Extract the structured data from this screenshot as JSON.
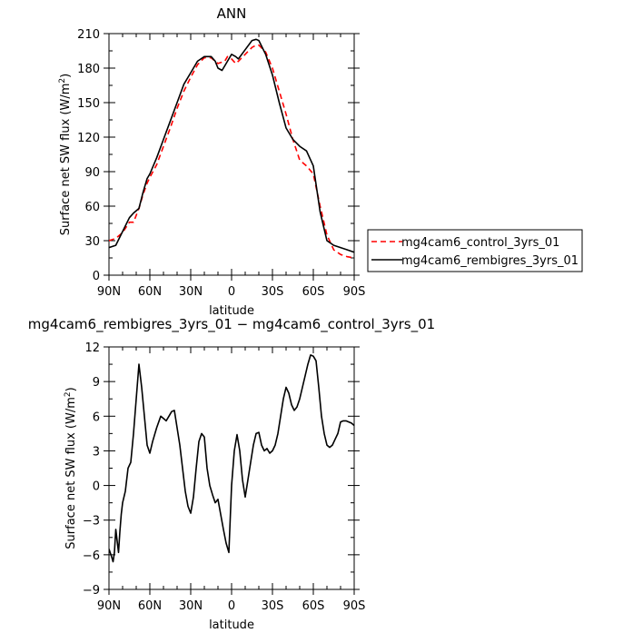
{
  "chart_data": [
    {
      "type": "line",
      "title": "ANN",
      "xlabel": "latitude",
      "ylabel": "Surface net SW flux (W/m²)",
      "ylabel_main": "Surface net SW flux (W/m",
      "ylabel_sup": "2",
      "ylabel_tail": ")",
      "xlim": [
        90,
        -90
      ],
      "ylim": [
        0,
        210
      ],
      "x_ticks": [
        90,
        60,
        30,
        0,
        -30,
        -60,
        -90
      ],
      "x_tick_labels": [
        "90N",
        "60N",
        "30N",
        "0",
        "30S",
        "60S",
        "90S"
      ],
      "y_ticks": [
        0,
        30,
        60,
        90,
        120,
        150,
        180,
        210
      ],
      "y_tick_labels": [
        "0",
        "30",
        "60",
        "90",
        "120",
        "150",
        "180",
        "210"
      ],
      "legend_position": "right",
      "series": [
        {
          "name": "mg4cam6_control_3yrs_01",
          "color": "#ff0000",
          "dash": "dashed",
          "x": [
            90,
            85,
            80,
            75,
            72,
            68,
            65,
            62,
            60,
            55,
            50,
            45,
            40,
            35,
            30,
            25,
            20,
            15,
            12,
            10,
            5,
            3,
            0,
            -3,
            -5,
            -10,
            -15,
            -18,
            -20,
            -25,
            -30,
            -35,
            -40,
            -45,
            -50,
            -55,
            -60,
            -65,
            -70,
            -75,
            -80,
            -85,
            -90
          ],
          "y": [
            30,
            32,
            37,
            46,
            46,
            58,
            70,
            80,
            85,
            96,
            112,
            128,
            145,
            160,
            172,
            183,
            189,
            189,
            186,
            184,
            186,
            190,
            188,
            184,
            186,
            192,
            198,
            200,
            200,
            194,
            180,
            160,
            140,
            118,
            100,
            95,
            88,
            60,
            35,
            22,
            18,
            16,
            15
          ]
        },
        {
          "name": "mg4cam6_rembigres_3yrs_01",
          "color": "#000000",
          "dash": "solid",
          "x": [
            90,
            85,
            80,
            75,
            72,
            68,
            65,
            62,
            60,
            55,
            50,
            45,
            40,
            35,
            30,
            25,
            20,
            15,
            12,
            10,
            7,
            5,
            3,
            0,
            -3,
            -5,
            -10,
            -15,
            -18,
            -20,
            -25,
            -30,
            -35,
            -40,
            -45,
            -50,
            -55,
            -60,
            -65,
            -70,
            -75,
            -80,
            -85,
            -90
          ],
          "y": [
            24,
            26,
            38,
            50,
            54,
            58,
            72,
            84,
            88,
            102,
            118,
            134,
            150,
            166,
            176,
            186,
            190,
            190,
            186,
            180,
            178,
            182,
            186,
            192,
            190,
            188,
            196,
            204,
            205,
            204,
            192,
            174,
            150,
            128,
            118,
            112,
            108,
            95,
            55,
            30,
            26,
            24,
            22,
            20
          ]
        }
      ]
    },
    {
      "type": "line",
      "title": "mg4cam6_rembigres_3yrs_01 − mg4cam6_control_3yrs_01",
      "xlabel": "latitude",
      "ylabel": "Surface net SW flux (W/m²)",
      "ylabel_main": "Surface net SW flux (W/m",
      "ylabel_sup": "2",
      "ylabel_tail": ")",
      "xlim": [
        90,
        -90
      ],
      "ylim": [
        -9,
        12
      ],
      "x_ticks": [
        90,
        60,
        30,
        0,
        -30,
        -60,
        -90
      ],
      "x_tick_labels": [
        "90N",
        "60N",
        "30N",
        "0",
        "30S",
        "60S",
        "90S"
      ],
      "y_ticks": [
        -9,
        -6,
        -3,
        0,
        3,
        6,
        9,
        12
      ],
      "y_tick_labels": [
        "−9",
        "−6",
        "−3",
        "0",
        "3",
        "6",
        "9",
        "12"
      ],
      "series": [
        {
          "name": "",
          "color": "#000000",
          "dash": "solid",
          "x": [
            90,
            88,
            87,
            86,
            85,
            84,
            83,
            82,
            81,
            80,
            78,
            76,
            74,
            72,
            70,
            68,
            66,
            64,
            62,
            60,
            58,
            55,
            52,
            50,
            48,
            46,
            44,
            42,
            40,
            38,
            36,
            34,
            32,
            30,
            28,
            26,
            24,
            22,
            20,
            18,
            16,
            14,
            12,
            10,
            8,
            6,
            4,
            2,
            0,
            -2,
            -4,
            -6,
            -8,
            -10,
            -12,
            -14,
            -16,
            -18,
            -20,
            -22,
            -24,
            -26,
            -28,
            -30,
            -32,
            -34,
            -36,
            -38,
            -40,
            -42,
            -44,
            -46,
            -48,
            -50,
            -52,
            -54,
            -56,
            -58,
            -60,
            -62,
            -64,
            -66,
            -68,
            -70,
            -72,
            -74,
            -76,
            -78,
            -80,
            -82,
            -84,
            -86,
            -88,
            -90
          ],
          "y": [
            -5.5,
            -6.2,
            -6.6,
            -5.8,
            -3.8,
            -4.8,
            -5.8,
            -4.0,
            -2.5,
            -1.5,
            -0.5,
            1.5,
            2.0,
            4.5,
            7.5,
            10.5,
            8.5,
            6.0,
            3.5,
            2.8,
            3.8,
            5.0,
            6.0,
            5.8,
            5.6,
            6.0,
            6.4,
            6.5,
            5.0,
            3.5,
            1.5,
            -0.5,
            -1.8,
            -2.4,
            -1.0,
            1.5,
            3.8,
            4.5,
            4.2,
            1.5,
            0.0,
            -0.8,
            -1.5,
            -1.2,
            -2.5,
            -3.8,
            -5.0,
            -5.8,
            0.0,
            3.0,
            4.4,
            3.0,
            0.5,
            -1.0,
            0.5,
            2.0,
            3.5,
            4.5,
            4.6,
            3.5,
            3.0,
            3.2,
            2.8,
            3.0,
            3.5,
            4.5,
            6.0,
            7.5,
            8.5,
            8.0,
            7.0,
            6.5,
            6.8,
            7.5,
            8.5,
            9.5,
            10.5,
            11.3,
            11.2,
            10.8,
            8.5,
            6.0,
            4.5,
            3.5,
            3.3,
            3.5,
            4.0,
            4.5,
            5.5,
            5.6,
            5.6,
            5.5,
            5.4,
            5.2
          ]
        }
      ]
    }
  ]
}
